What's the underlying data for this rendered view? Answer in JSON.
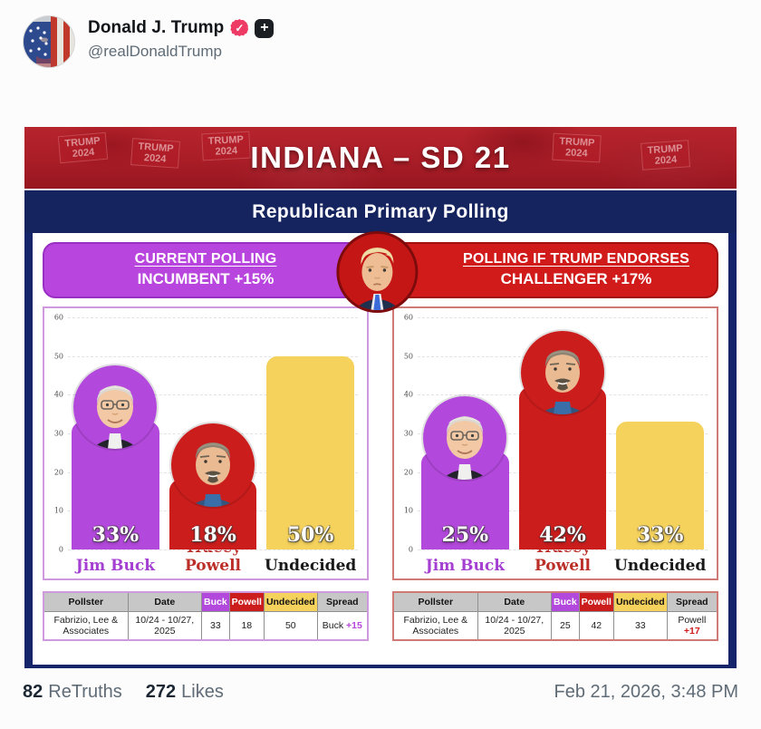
{
  "post": {
    "author": "Donald J. Trump",
    "handle": "@realDonaldTrump",
    "verified_glyph": "✓",
    "plus_glyph": "+",
    "stats": {
      "retruths_count": "82",
      "retruths_label": "ReTruths",
      "likes_count": "272",
      "likes_label": "Likes"
    },
    "timestamp": "Feb 21, 2026, 3:48 PM"
  },
  "graphic": {
    "title": "INDIANA – SD 21",
    "subtitle": "Republican Primary Polling",
    "banner_signs": [
      "TRUMP\n2024",
      "TRUMP\n2024",
      "TRUMP\n2024",
      "TRUMP\n2024",
      "TRUMP\n2024"
    ],
    "colors": {
      "navy_frame": "#16246a",
      "banner_red": "#a91d27",
      "buck_purple": "#b348dc",
      "powell_red": "#cc1d1d",
      "undecided_yellow": "#f5d25c"
    },
    "panels": [
      {
        "header_line1": "CURRENT POLLING",
        "header_line2": "INCUMBENT +15%",
        "accent": "#b845dd",
        "accent_dark": "#9a2fc4",
        "box_border": "#cf9add",
        "chart": {
          "ymax": 60,
          "yticks": [
            "60",
            "50",
            "40",
            "30",
            "20",
            "10",
            "0"
          ],
          "bars": [
            {
              "label": "Jim Buck",
              "value": 33,
              "pct_label": "33%",
              "color": "#b348dc",
              "name_color": "#a43fd2",
              "photo": "jim-buck"
            },
            {
              "label": "Tracey Powell",
              "value": 18,
              "pct_label": "18%",
              "color": "#cc1d1d",
              "name_color": "#bb2f28",
              "photo": "tracey-powell"
            },
            {
              "label": "Undecided",
              "value": 50,
              "pct_label": "50%",
              "color": "#f5d25c",
              "name_color": "#191919",
              "photo": null
            }
          ]
        },
        "table": {
          "headers": [
            "Pollster",
            "Date",
            "Buck",
            "Powell",
            "Undecided",
            "Spread"
          ],
          "row": {
            "pollster": "Fabrizio, Lee & Associates",
            "date": "10/24 - 10/27, 2025",
            "buck": "33",
            "powell": "18",
            "undecided": "50",
            "spread_name": "Buck ",
            "spread_value": "+15"
          }
        }
      },
      {
        "header_line1": "POLLING IF TRUMP ENDORSES",
        "header_line2": "CHALLENGER +17%",
        "accent": "#d11a1a",
        "accent_dark": "#a31010",
        "box_border": "#cf7a74",
        "chart": {
          "ymax": 60,
          "yticks": [
            "60",
            "50",
            "40",
            "30",
            "20",
            "10",
            "0"
          ],
          "bars": [
            {
              "label": "Jim Buck",
              "value": 25,
              "pct_label": "25%",
              "color": "#b348dc",
              "name_color": "#a43fd2",
              "photo": "jim-buck"
            },
            {
              "label": "Tracey Powell",
              "value": 42,
              "pct_label": "42%",
              "color": "#cc1d1d",
              "name_color": "#bb2f28",
              "photo": "tracey-powell"
            },
            {
              "label": "Undecided",
              "value": 33,
              "pct_label": "33%",
              "color": "#f5d25c",
              "name_color": "#191919",
              "photo": null
            }
          ]
        },
        "table": {
          "headers": [
            "Pollster",
            "Date",
            "Buck",
            "Powell",
            "Undecided",
            "Spread"
          ],
          "row": {
            "pollster": "Fabrizio, Lee & Associates",
            "date": "10/24 - 10/27, 2025",
            "buck": "25",
            "powell": "42",
            "undecided": "33",
            "spread_name": "Powell ",
            "spread_value": "+17"
          }
        }
      }
    ]
  },
  "chart_data": [
    {
      "type": "bar",
      "title": "CURRENT POLLING — INCUMBENT +15%",
      "categories": [
        "Jim Buck",
        "Tracey Powell",
        "Undecided"
      ],
      "values": [
        33,
        18,
        50
      ],
      "bar_colors": [
        "#b348dc",
        "#cc1d1d",
        "#f5d25c"
      ],
      "xlabel": "",
      "ylabel": "",
      "ylim": [
        0,
        60
      ],
      "yticks": [
        0,
        10,
        20,
        30,
        40,
        50,
        60
      ],
      "grid": true,
      "legend": false
    },
    {
      "type": "bar",
      "title": "POLLING IF TRUMP ENDORSES — CHALLENGER +17%",
      "categories": [
        "Jim Buck",
        "Tracey Powell",
        "Undecided"
      ],
      "values": [
        25,
        42,
        33
      ],
      "bar_colors": [
        "#b348dc",
        "#cc1d1d",
        "#f5d25c"
      ],
      "xlabel": "",
      "ylabel": "",
      "ylim": [
        0,
        60
      ],
      "yticks": [
        0,
        10,
        20,
        30,
        40,
        50,
        60
      ],
      "grid": true,
      "legend": false
    }
  ]
}
